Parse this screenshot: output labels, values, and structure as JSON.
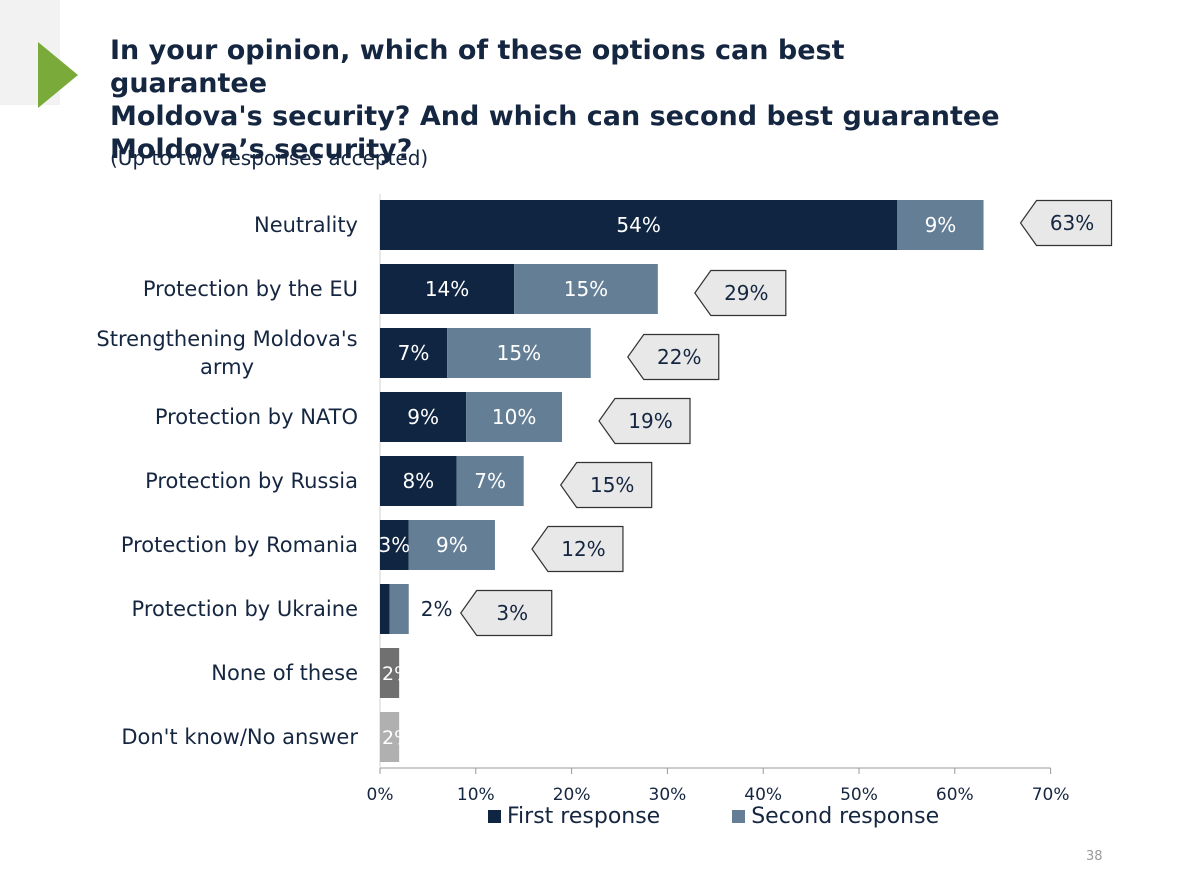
{
  "title_lines": [
    "In your opinion, which of these options can best guarantee",
    "Moldova's security? And which can second best guarantee",
    "Moldova’s security?"
  ],
  "subtitle": "(Up to two responses accepted)",
  "page_number": "38",
  "colors": {
    "first_response": "#0f2541",
    "second_response": "#647f95",
    "none_of_these": "#707070",
    "dont_know": "#b0b0b0",
    "total_box": "#e8e8e8",
    "accent_triangle": "#7aab3a"
  },
  "chart_data": {
    "type": "bar",
    "orientation": "horizontal",
    "stacked": true,
    "categories": [
      "Neutrality",
      "Protection by the EU",
      "Strengthening Moldova's army",
      "Protection by NATO",
      "Protection by Russia",
      "Protection by Romania",
      "Protection by Ukraine",
      "None of these",
      "Don't know/No answer"
    ],
    "category_lines": [
      [
        "Neutrality"
      ],
      [
        "Protection by the EU"
      ],
      [
        "Strengthening Moldova's",
        "army"
      ],
      [
        "Protection by NATO"
      ],
      [
        "Protection by Russia"
      ],
      [
        "Protection by Romania"
      ],
      [
        "Protection by Ukraine"
      ],
      [
        "None of these"
      ],
      [
        "Don't know/No answer"
      ]
    ],
    "series": [
      {
        "name": "First response",
        "values": [
          54,
          14,
          7,
          9,
          8,
          3,
          1,
          null,
          null
        ]
      },
      {
        "name": "Second response",
        "values": [
          9,
          15,
          15,
          10,
          7,
          9,
          2,
          null,
          null
        ]
      }
    ],
    "single_values": [
      null,
      null,
      null,
      null,
      null,
      null,
      null,
      2,
      2
    ],
    "totals": [
      63,
      29,
      22,
      19,
      15,
      12,
      3,
      null,
      null
    ],
    "xlim": [
      0,
      70
    ],
    "xticks": [
      0,
      10,
      20,
      30,
      40,
      50,
      60,
      70
    ],
    "value_suffix": "%",
    "legend": [
      "First response",
      "Second response"
    ],
    "legend_position": "bottom"
  }
}
